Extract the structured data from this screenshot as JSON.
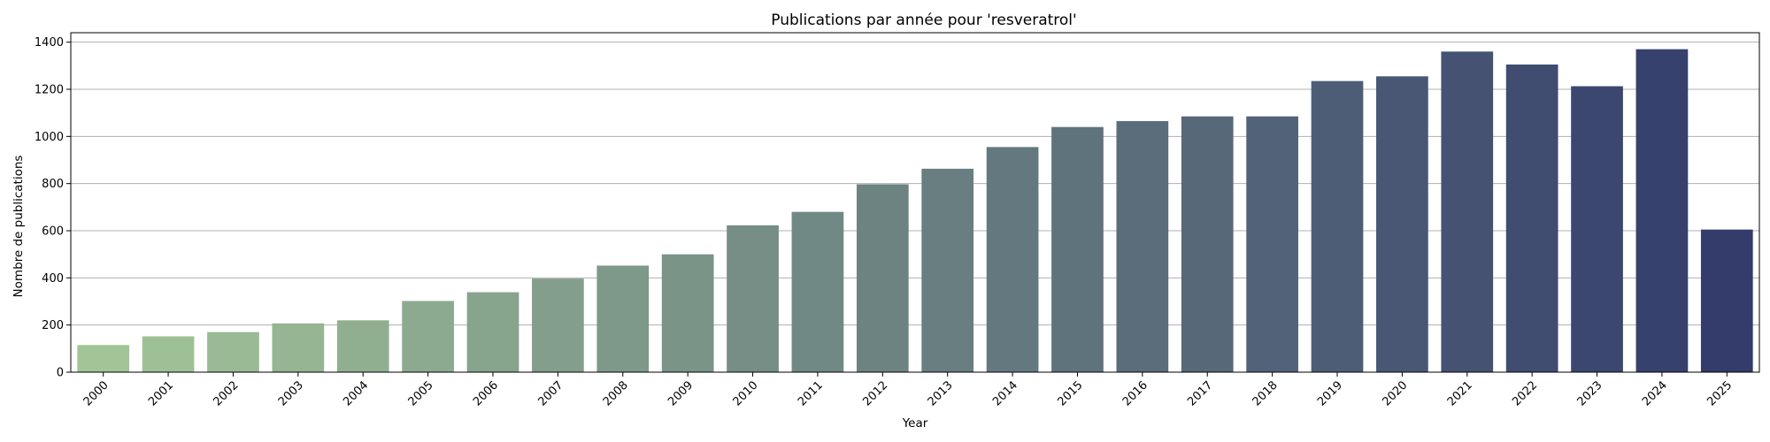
{
  "chart_data": {
    "type": "bar",
    "title": "Publications par année pour 'resveratrol'",
    "xlabel": "Year",
    "ylabel": "Nombre de publications",
    "categories": [
      "2000",
      "2001",
      "2002",
      "2003",
      "2004",
      "2005",
      "2006",
      "2007",
      "2008",
      "2009",
      "2010",
      "2011",
      "2012",
      "2013",
      "2014",
      "2015",
      "2016",
      "2017",
      "2018",
      "2019",
      "2020",
      "2021",
      "2022",
      "2023",
      "2024",
      "2025"
    ],
    "values": [
      115,
      152,
      170,
      207,
      220,
      302,
      339,
      397,
      452,
      500,
      623,
      680,
      797,
      863,
      955,
      1040,
      1065,
      1085,
      1085,
      1235,
      1255,
      1360,
      1305,
      1213,
      1370,
      605
    ],
    "ylim": [
      0,
      1440
    ],
    "yticks": [
      0,
      200,
      400,
      600,
      800,
      1000,
      1200,
      1400
    ],
    "grid": "y",
    "legend": "none",
    "palette": "crest",
    "color_start": "#a2c598",
    "color_end": "#333c6b"
  }
}
